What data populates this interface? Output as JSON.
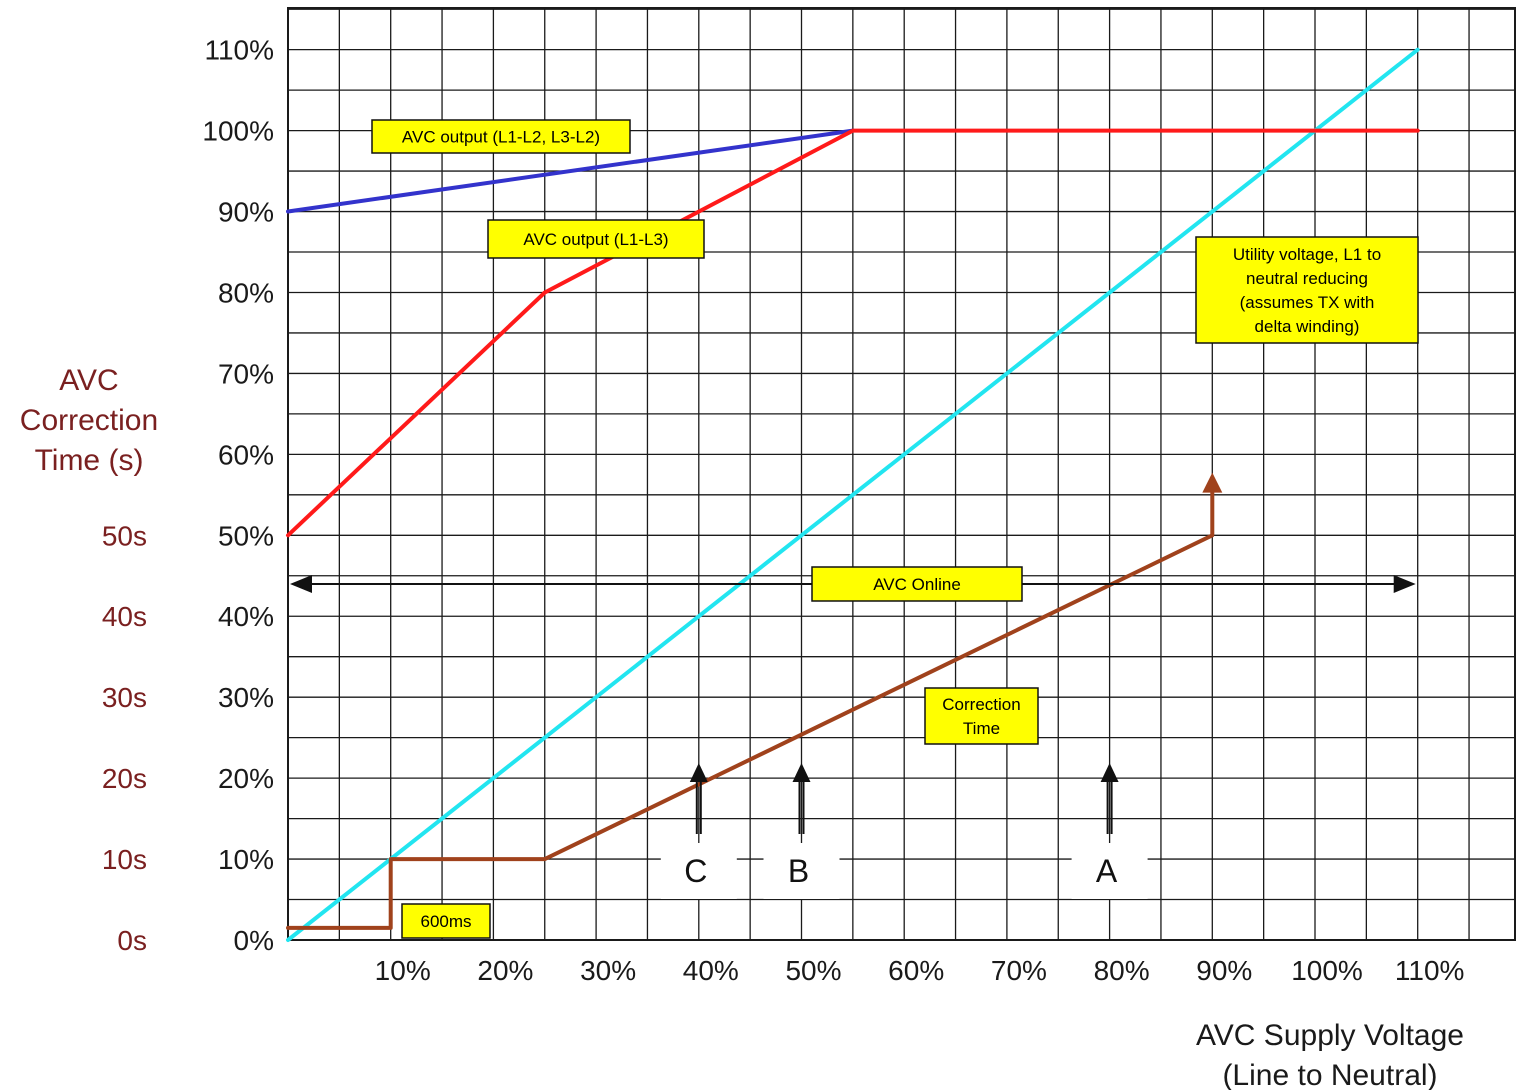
{
  "chart_data": {
    "type": "line",
    "title": "",
    "xlabel": [
      "AVC Supply Voltage",
      "(Line to Neutral)"
    ],
    "ylabel_left": [
      "AVC",
      "Correction",
      "Time (s)"
    ],
    "xlim": [
      0,
      120
    ],
    "ylim": [
      0,
      115
    ],
    "grid": true,
    "x_ticks": [
      {
        "v": 10,
        "label": "10%"
      },
      {
        "v": 20,
        "label": "20%"
      },
      {
        "v": 30,
        "label": "30%"
      },
      {
        "v": 40,
        "label": "40%"
      },
      {
        "v": 50,
        "label": "50%"
      },
      {
        "v": 60,
        "label": "60%"
      },
      {
        "v": 70,
        "label": "70%"
      },
      {
        "v": 80,
        "label": "80%"
      },
      {
        "v": 90,
        "label": "90%"
      },
      {
        "v": 100,
        "label": "100%"
      },
      {
        "v": 110,
        "label": "110%"
      }
    ],
    "y_ticks": [
      {
        "v": 0,
        "label": "0%"
      },
      {
        "v": 10,
        "label": "10%"
      },
      {
        "v": 20,
        "label": "20%"
      },
      {
        "v": 30,
        "label": "30%"
      },
      {
        "v": 40,
        "label": "40%"
      },
      {
        "v": 50,
        "label": "50%"
      },
      {
        "v": 60,
        "label": "60%"
      },
      {
        "v": 70,
        "label": "70%"
      },
      {
        "v": 80,
        "label": "80%"
      },
      {
        "v": 90,
        "label": "90%"
      },
      {
        "v": 100,
        "label": "100%"
      },
      {
        "v": 110,
        "label": "110%"
      }
    ],
    "time_ticks": [
      {
        "v": 0,
        "label": "0s"
      },
      {
        "v": 10,
        "label": "10s"
      },
      {
        "v": 20,
        "label": "20s"
      },
      {
        "v": 30,
        "label": "30s"
      },
      {
        "v": 40,
        "label": "40s"
      },
      {
        "v": 50,
        "label": "50s"
      }
    ],
    "series": [
      {
        "key": "l1l2",
        "color": "#3333cc",
        "points": [
          [
            0,
            90
          ],
          [
            55,
            100
          ]
        ]
      },
      {
        "key": "l1l3",
        "color": "#ff1a1a",
        "points": [
          [
            0,
            50
          ],
          [
            25,
            80
          ],
          [
            55,
            100
          ],
          [
            110,
            100
          ]
        ]
      },
      {
        "key": "utility",
        "color": "#22e5f0",
        "points": [
          [
            0,
            0
          ],
          [
            110,
            110
          ]
        ]
      },
      {
        "key": "correction",
        "color": "#a0421c",
        "points": [
          [
            0,
            1.5
          ],
          [
            10,
            1.5
          ],
          [
            10,
            10
          ],
          [
            25,
            10
          ],
          [
            90,
            50
          ],
          [
            90,
            57
          ]
        ]
      }
    ],
    "annotations": [
      {
        "key": "ann-l1l2",
        "lines": [
          "AVC output (L1-L2, L3-L2)"
        ]
      },
      {
        "key": "ann-l1l3",
        "lines": [
          "AVC output (L1-L3)"
        ]
      },
      {
        "key": "ann-utility",
        "lines": [
          "Utility voltage, L1 to",
          "neutral  reducing",
          "(assumes TX with",
          "delta winding)"
        ]
      },
      {
        "key": "ann-online",
        "lines": [
          "AVC Online"
        ]
      },
      {
        "key": "ann-correction",
        "lines": [
          "Correction",
          "Time"
        ]
      },
      {
        "key": "ann-600ms",
        "lines": [
          "600ms"
        ]
      }
    ],
    "markers": [
      {
        "label": "C",
        "x": 40
      },
      {
        "label": "B",
        "x": 50
      },
      {
        "label": "A",
        "x": 80
      }
    ],
    "online_range": [
      0,
      110
    ],
    "annotation_fill": "#ffff00",
    "grid_color": "#1a1a1a",
    "secondary_label_color": "#7a2020"
  }
}
